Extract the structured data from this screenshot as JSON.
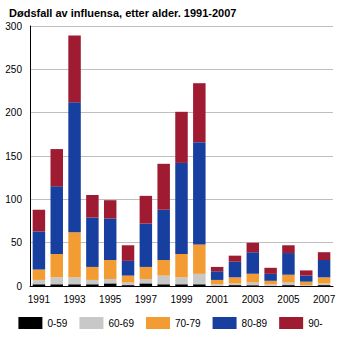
{
  "chart_data": {
    "type": "bar",
    "title": "Dødsfall av influensa, etter alder. 1991-2007",
    "categories": [
      "1991",
      null,
      "1993",
      null,
      "1995",
      null,
      "1997",
      null,
      "1999",
      null,
      "2001",
      null,
      "2003",
      null,
      "2005",
      null,
      "2007"
    ],
    "series": [
      {
        "name": "0-59",
        "color": "#000000",
        "values": [
          2,
          2,
          2,
          2,
          3,
          1,
          3,
          2,
          2,
          2,
          0,
          1,
          1,
          0,
          1,
          0,
          1
        ]
      },
      {
        "name": "60-69",
        "color": "#c8c8c8",
        "values": [
          5,
          8,
          8,
          5,
          5,
          3,
          5,
          10,
          8,
          12,
          2,
          2,
          3,
          2,
          3,
          1,
          2
        ]
      },
      {
        "name": "70-79",
        "color": "#f39c34",
        "values": [
          12,
          27,
          52,
          15,
          22,
          8,
          14,
          18,
          27,
          34,
          5,
          7,
          10,
          4,
          9,
          4,
          7
        ]
      },
      {
        "name": "80-89",
        "color": "#173f9f",
        "values": [
          44,
          78,
          150,
          57,
          48,
          17,
          50,
          58,
          105,
          118,
          10,
          18,
          25,
          8,
          25,
          7,
          20
        ]
      },
      {
        "name": "90-",
        "color": "#9e1b32",
        "values": [
          25,
          43,
          77,
          26,
          21,
          18,
          32,
          53,
          59,
          68,
          5,
          7,
          11,
          7,
          9,
          6,
          9
        ]
      }
    ],
    "stacked": true,
    "ylim": [
      0,
      300
    ],
    "yticks": [
      0,
      50,
      100,
      150,
      200,
      250,
      300
    ],
    "grid": true,
    "legend": "bottom"
  }
}
